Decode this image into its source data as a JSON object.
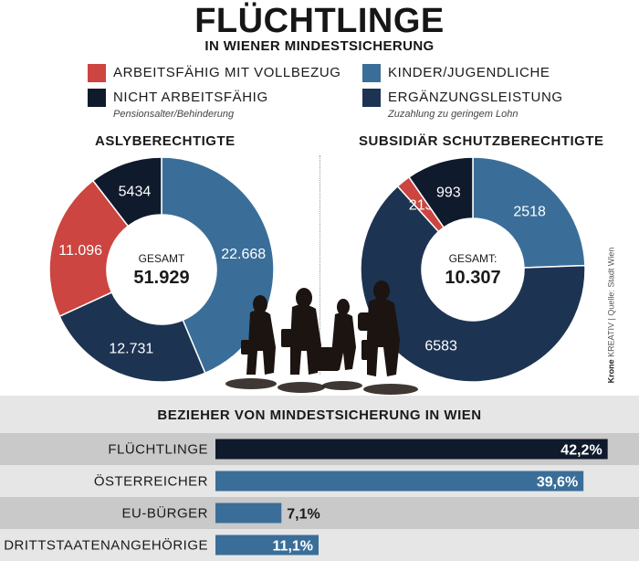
{
  "header": {
    "title": "FLÜCHTLINGE",
    "subtitle": "IN WIENER MINDESTSICHERUNG"
  },
  "legend": [
    {
      "label": "ARBEITSFÄHIG MIT VOLLBEZUG",
      "sub": "",
      "color": "#cc4540"
    },
    {
      "label": "NICHT ARBEITSFÄHIG",
      "sub": "Pensionsalter/Behinderung",
      "color": "#0f1a2c"
    },
    {
      "label": "KINDER/JUGENDLICHE",
      "sub": "",
      "color": "#3a6e99"
    },
    {
      "label": "ERGÄNZUNGSLEISTUNG",
      "sub": "Zuzahlung zu geringem Lohn",
      "color": "#1d3352"
    }
  ],
  "credit": {
    "brand": "Krone",
    "text": " KREATIV | Quelle: Stadt Wien"
  },
  "chart_data": [
    {
      "type": "pie",
      "title": "ASLYBERECHTIGTE",
      "center_label": "GESAMT",
      "center_value": "51.929",
      "slices": [
        {
          "label": "22.668",
          "value": 22668,
          "category": "KINDER/JUGENDLICHE",
          "color": "#3a6e99"
        },
        {
          "label": "12.731",
          "value": 12731,
          "category": "ERGÄNZUNGSLEISTUNG",
          "color": "#1d3352"
        },
        {
          "label": "11.096",
          "value": 11096,
          "category": "ARBEITSFÄHIG MIT VOLLBEZUG",
          "color": "#cc4540"
        },
        {
          "label": "5434",
          "value": 5434,
          "category": "NICHT ARBEITSFÄHIG",
          "color": "#0f1a2c"
        }
      ]
    },
    {
      "type": "pie",
      "title": "SUBSIDIÄR SCHUTZBERECHTIGTE",
      "center_label": "GESAMT:",
      "center_value": "10.307",
      "slices": [
        {
          "label": "2518",
          "value": 2518,
          "category": "KINDER/JUGENDLICHE",
          "color": "#3a6e99"
        },
        {
          "label": "6583",
          "value": 6583,
          "category": "ERGÄNZUNGSLEISTUNG",
          "color": "#1d3352"
        },
        {
          "label": "213",
          "value": 213,
          "category": "ARBEITSFÄHIG MIT VOLLBEZUG",
          "color": "#cc4540"
        },
        {
          "label": "993",
          "value": 993,
          "category": "NICHT ARBEITSFÄHIG",
          "color": "#0f1a2c"
        }
      ]
    },
    {
      "type": "bar",
      "title": "BEZIEHER VON MINDESTSICHERUNG IN WIEN",
      "categories": [
        "FLÜCHTLINGE",
        "ÖSTERREICHER",
        "EU-BÜRGER",
        "DRITTSTAATENANGEHÖRIGE"
      ],
      "values": [
        42.2,
        39.6,
        7.1,
        11.1
      ],
      "value_labels": [
        "42,2%",
        "39,6%",
        "7,1%",
        "11,1%"
      ],
      "bar_colors": [
        "#0f1a2c",
        "#3a6e99",
        "#3a6e99",
        "#3a6e99"
      ],
      "xlim": [
        0,
        44
      ]
    }
  ]
}
